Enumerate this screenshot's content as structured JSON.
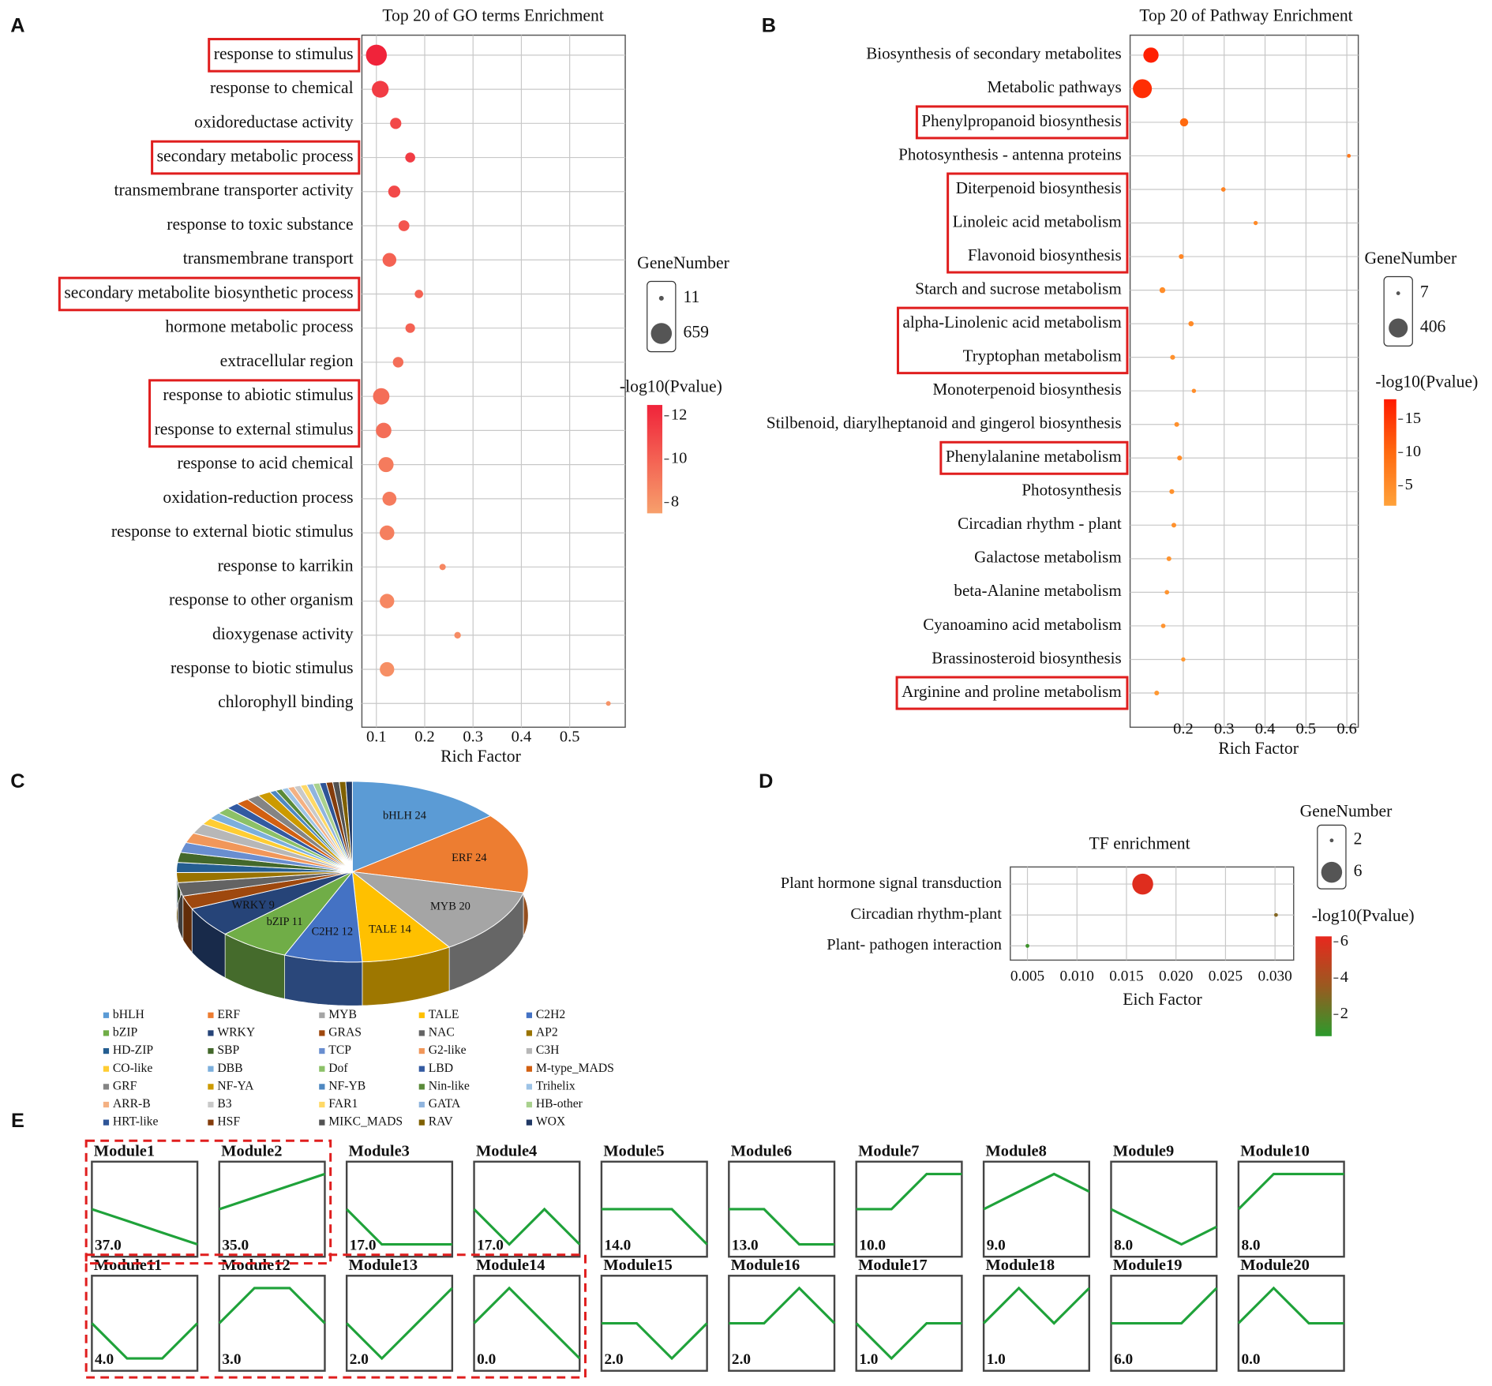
{
  "chart_data": [
    {
      "type": "bubble",
      "panel": "A",
      "title": "Top 20 of GO terms Enrichment",
      "xlabel": "Rich Factor",
      "categories": [
        "response to stimulus",
        "response to chemical",
        "oxidoreductase activity",
        "secondary metabolic process",
        "transmembrane transporter activity",
        "response to toxic substance",
        "transmembrane transport",
        "secondary metabolite biosynthetic process",
        "hormone metabolic process",
        "extracellular region",
        "response to abiotic stimulus",
        "response to external stimulus",
        "response to acid chemical",
        "oxidation-reduction process",
        "response to external biotic stimulus",
        "response to karrikin",
        "response to other organism",
        "dioxygenase activity",
        "response to biotic stimulus",
        "chlorophyll binding"
      ],
      "values": [
        0.1,
        0.108,
        0.14,
        0.17,
        0.137,
        0.157,
        0.127,
        0.188,
        0.17,
        0.145,
        0.11,
        0.115,
        0.12,
        0.127,
        0.122,
        0.237,
        0.122,
        0.268,
        0.122,
        0.58
      ],
      "sizes": [
        659,
        400,
        150,
        110,
        180,
        140,
        250,
        70,
        100,
        130,
        380,
        330,
        310,
        260,
        290,
        30,
        280,
        35,
        280,
        11
      ],
      "pvalues": [
        12.5,
        11.5,
        11,
        11.5,
        11,
        10.5,
        10,
        10,
        10,
        9.5,
        9.5,
        9.5,
        9,
        9,
        8.8,
        8.5,
        8.5,
        8.3,
        8.2,
        8
      ],
      "xlim": [
        0.07,
        0.615
      ],
      "xticks": [
        0.1,
        0.2,
        0.3,
        0.4,
        0.5
      ],
      "grid": true,
      "size_legend": {
        "title": "GeneNumber",
        "values": [
          11,
          659
        ]
      },
      "color_legend": {
        "title": "-log10(Pvalue)",
        "ticks": [
          8,
          10,
          12
        ],
        "lim": [
          7.5,
          12.5
        ],
        "colors": [
          "#f7a06c",
          "#f0233a"
        ]
      },
      "highlight": [
        [
          0
        ],
        [
          3
        ],
        [
          7
        ],
        [
          10,
          11
        ]
      ]
    },
    {
      "type": "bubble",
      "panel": "B",
      "title": "Top 20 of Pathway Enrichment",
      "xlabel": "Rich Factor",
      "categories": [
        "Biosynthesis of secondary metabolites",
        "Metabolic pathways",
        "Phenylpropanoid biosynthesis",
        "Photosynthesis - antenna proteins",
        "Diterpenoid biosynthesis",
        "Linoleic acid metabolism",
        "Flavonoid biosynthesis",
        "Starch and sucrose metabolism",
        "alpha-Linolenic acid metabolism",
        "Tryptophan metabolism",
        "Monoterpenoid biosynthesis",
        "Stilbenoid, diarylheptanoid and gingerol biosynthesis",
        "Phenylalanine metabolism",
        "Photosynthesis",
        "Circadian rhythm - plant",
        "Galactose metabolism",
        "beta-Alanine metabolism",
        "Cyanoamino acid metabolism",
        "Brassinosteroid biosynthesis",
        "Arginine and proline metabolism"
      ],
      "values": [
        0.121,
        0.1,
        0.202,
        0.605,
        0.298,
        0.377,
        0.195,
        0.149,
        0.219,
        0.174,
        0.226,
        0.184,
        0.191,
        0.172,
        0.177,
        0.165,
        0.16,
        0.151,
        0.2,
        0.135
      ],
      "sizes": [
        250,
        406,
        60,
        7,
        12,
        10,
        15,
        25,
        18,
        15,
        10,
        14,
        15,
        15,
        14,
        14,
        12,
        12,
        10,
        14
      ],
      "pvalues": [
        17.5,
        16,
        10,
        8,
        6.5,
        5.5,
        6,
        5,
        5.5,
        4.5,
        5,
        4.5,
        5,
        4.5,
        4.5,
        4,
        4,
        4,
        3.5,
        3.5
      ],
      "xlim": [
        0.07,
        0.628
      ],
      "xticks": [
        0.2,
        0.3,
        0.4,
        0.5,
        0.6
      ],
      "grid": true,
      "size_legend": {
        "title": "GeneNumber",
        "values": [
          7,
          406
        ]
      },
      "color_legend": {
        "title": "-log10(Pvalue)",
        "ticks": [
          5,
          10,
          15
        ],
        "lim": [
          2,
          18
        ],
        "colors": [
          "#ffa23a",
          "#ff6a10",
          "#ff1a00"
        ]
      },
      "highlight": [
        [
          2
        ],
        [
          4,
          5,
          6
        ],
        [
          8,
          9
        ],
        [
          12
        ],
        [
          19
        ]
      ]
    },
    {
      "type": "pie3d",
      "panel": "C",
      "categories": [
        "bHLH",
        "ERF",
        "MYB",
        "TALE",
        "C2H2",
        "bZIP",
        "WRKY",
        "GRAS",
        "NAC",
        "AP2",
        "HD-ZIP",
        "SBP",
        "TCP",
        "G2-like",
        "C3H",
        "CO-like",
        "DBB",
        "Dof",
        "LBD",
        "M-type_MADS",
        "GRF",
        "NF-YA",
        "NF-YB",
        "Nin-like",
        "Trihelix",
        "ARR-B",
        "B3",
        "FAR1",
        "GATA",
        "HB-other",
        "HRT-like",
        "HSF",
        "MIKC_MADS",
        "RAV",
        "WOX"
      ],
      "values": [
        24,
        24,
        20,
        14,
        12,
        11,
        9,
        4,
        4,
        3,
        3,
        3,
        3,
        3,
        3,
        2,
        2,
        2,
        2,
        2,
        2,
        2,
        1,
        1,
        1,
        1,
        1,
        1,
        1,
        1,
        1,
        1,
        1,
        1,
        1
      ],
      "value_labels": [
        "bHLH 24",
        "ERF 24",
        "MYB 20",
        "TALE 14",
        "C2H2 12",
        "bZIP 11",
        "WRKY 9",
        null,
        null,
        null,
        null,
        null,
        null,
        null,
        null,
        null,
        null,
        null,
        null,
        null,
        null,
        null,
        null,
        null,
        null,
        null,
        null,
        null,
        null,
        null,
        null,
        null,
        null,
        null,
        null
      ],
      "colors": [
        "#5b9bd5",
        "#ed7d31",
        "#a5a5a5",
        "#ffc000",
        "#4472c4",
        "#70ad47",
        "#264478",
        "#9e480e",
        "#636363",
        "#997300",
        "#255e91",
        "#43682b",
        "#698ed0",
        "#f1975a",
        "#b7b7b7",
        "#ffcd33",
        "#7cafdd",
        "#8cc168",
        "#335aa1",
        "#d26012",
        "#848484",
        "#cc9a00",
        "#4e88c1",
        "#5a8a39",
        "#9dc3e6",
        "#f4b183",
        "#c9c9c9",
        "#ffd966",
        "#8fb4de",
        "#a9d18e",
        "#2f5597",
        "#843c0c",
        "#525252",
        "#7f6000",
        "#203864"
      ]
    },
    {
      "type": "bubble",
      "panel": "D",
      "title": "TF enrichment",
      "xlabel": "Eich Factor",
      "categories": [
        "Plant hormone signal transduction",
        "Circadian rhythm-plant",
        "Plant- pathogen interaction"
      ],
      "values": [
        0.01664,
        0.0301,
        0.005
      ],
      "sizes": [
        6,
        2,
        2
      ],
      "pvalues": [
        6,
        3,
        1.2
      ],
      "xlim": [
        0.00327,
        0.03188
      ],
      "xticks": [
        {
          "value": 0.005,
          "label": "0.005"
        },
        {
          "value": 0.01,
          "label": "0.010"
        },
        {
          "value": 0.015,
          "label": "0.015"
        },
        {
          "value": 0.02,
          "label": "0.020"
        },
        {
          "value": 0.025,
          "label": "0.025"
        },
        {
          "value": 0.03,
          "label": "0.030"
        }
      ],
      "grid": true,
      "size_legend": {
        "title": "GeneNumber",
        "values": [
          2,
          6
        ]
      },
      "color_legend": {
        "title": "-log10(Pvalue)",
        "ticks": [
          2,
          4,
          6
        ],
        "lim": [
          0.8,
          6.3
        ],
        "colors": [
          "#2c9a2c",
          "#9a5a20",
          "#e8281e"
        ]
      },
      "highlight": []
    },
    {
      "type": "profiles",
      "panel": "E",
      "color": "#1fa23a",
      "series": [
        {
          "name": "Module1",
          "values": [
            0,
            -1,
            -2,
            -3
          ],
          "count": 37,
          "count_label": "37.0"
        },
        {
          "name": "Module2",
          "values": [
            0,
            1,
            2,
            3
          ],
          "count": 35,
          "count_label": "35.0"
        },
        {
          "name": "Module3",
          "values": [
            0,
            -1,
            -1,
            -1
          ],
          "count": 17,
          "count_label": "17.0"
        },
        {
          "name": "Module4",
          "values": [
            0,
            -1,
            0,
            -1
          ],
          "count": 17,
          "count_label": "17.0"
        },
        {
          "name": "Module5",
          "values": [
            0,
            0,
            0,
            -1
          ],
          "count": 14,
          "count_label": "14.0"
        },
        {
          "name": "Module6",
          "values": [
            0,
            0,
            -1,
            -1
          ],
          "count": 13,
          "count_label": "13.0"
        },
        {
          "name": "Module7",
          "values": [
            0,
            0,
            1,
            1
          ],
          "count": 10,
          "count_label": "10.0"
        },
        {
          "name": "Module8",
          "values": [
            0,
            1,
            2,
            1
          ],
          "count": 9,
          "count_label": "9.0"
        },
        {
          "name": "Module9",
          "values": [
            0,
            -1,
            -2,
            -1
          ],
          "count": 8,
          "count_label": "8.0"
        },
        {
          "name": "Module10",
          "values": [
            0,
            1,
            1,
            1
          ],
          "count": 8,
          "count_label": "8.0"
        },
        {
          "name": "Module11",
          "values": [
            0,
            -1,
            -1,
            0
          ],
          "count": 4,
          "count_label": "4.0"
        },
        {
          "name": "Module12",
          "values": [
            0,
            1,
            1,
            0
          ],
          "count": 3,
          "count_label": "3.0"
        },
        {
          "name": "Module13",
          "values": [
            0,
            -1,
            0,
            1
          ],
          "count": 2,
          "count_label": "2.0"
        },
        {
          "name": "Module14",
          "values": [
            0,
            1,
            0,
            -1
          ],
          "count": 0,
          "count_label": "0.0"
        },
        {
          "name": "Module15",
          "values": [
            0,
            0,
            -1,
            0
          ],
          "count": 2,
          "count_label": "2.0"
        },
        {
          "name": "Module16",
          "values": [
            0,
            0,
            1,
            0
          ],
          "count": 2,
          "count_label": "2.0"
        },
        {
          "name": "Module17",
          "values": [
            0,
            -1,
            0,
            0
          ],
          "count": 1,
          "count_label": "1.0"
        },
        {
          "name": "Module18",
          "values": [
            0,
            1,
            0,
            1
          ],
          "count": 1,
          "count_label": "1.0"
        },
        {
          "name": "Module19",
          "values": [
            0,
            0,
            0,
            1
          ],
          "count": 6,
          "count_label": "6.0"
        },
        {
          "name": "Module20",
          "values": [
            0,
            1,
            0,
            0
          ],
          "count": 0,
          "count_label": "0.0"
        }
      ],
      "highlight": [
        [
          0,
          1
        ],
        [
          10,
          11,
          12,
          13
        ]
      ]
    }
  ]
}
